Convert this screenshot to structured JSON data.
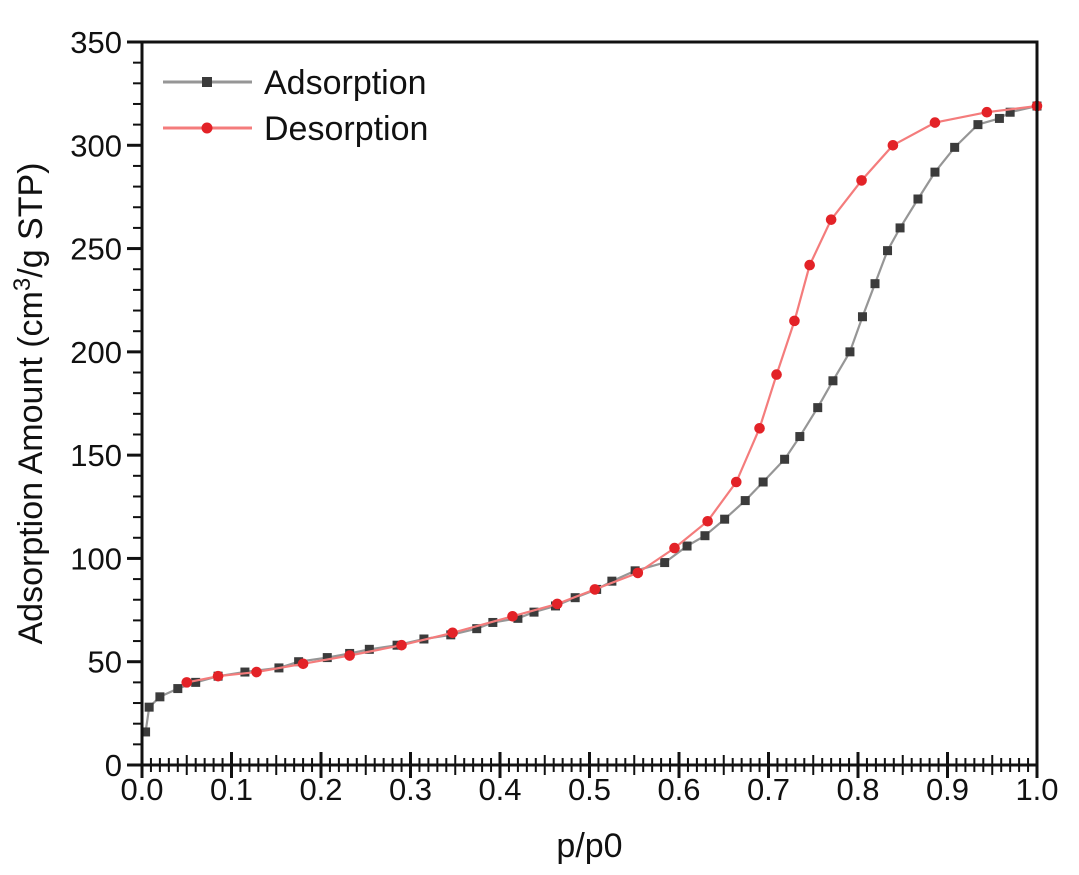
{
  "chart_data": {
    "type": "line",
    "title": "",
    "xlabel": "p/p0",
    "ylabel_parts": [
      {
        "t": "Adsorption Amount (cm"
      },
      {
        "t": "3",
        "sup": true
      },
      {
        "t": "/g STP)"
      }
    ],
    "xlim": [
      0.0,
      1.0
    ],
    "ylim": [
      0,
      350
    ],
    "x_tick_labels": [
      "0.0",
      "0.1",
      "0.2",
      "0.3",
      "0.4",
      "0.5",
      "0.6",
      "0.7",
      "0.8",
      "0.9",
      "1.0"
    ],
    "x_tick_values": [
      0.0,
      0.1,
      0.2,
      0.3,
      0.4,
      0.5,
      0.6,
      0.7,
      0.8,
      0.9,
      1.0
    ],
    "y_tick_labels": [
      "0",
      "50",
      "100",
      "150",
      "200",
      "250",
      "300",
      "350"
    ],
    "y_tick_values": [
      0,
      50,
      100,
      150,
      200,
      250,
      300,
      350
    ],
    "x_minor_step": 0.01,
    "y_minor_step": 10,
    "grid": false,
    "legend_position": "top-left-inside",
    "frame_color": "#111111",
    "background_color": "#ffffff",
    "legend": [
      {
        "label": "Adsorption",
        "series_index": 0
      },
      {
        "label": "Desorption",
        "series_index": 1
      }
    ],
    "series": [
      {
        "name": "Adsorption",
        "marker": "square",
        "marker_color": "#3b3b3b",
        "line_color": "#969696",
        "points": [
          [
            0.004,
            16
          ],
          [
            0.008,
            28
          ],
          [
            0.02,
            33
          ],
          [
            0.04,
            37
          ],
          [
            0.06,
            40
          ],
          [
            0.085,
            43
          ],
          [
            0.115,
            45
          ],
          [
            0.153,
            47
          ],
          [
            0.175,
            50
          ],
          [
            0.207,
            52
          ],
          [
            0.232,
            54
          ],
          [
            0.254,
            56
          ],
          [
            0.285,
            58
          ],
          [
            0.315,
            61
          ],
          [
            0.345,
            63
          ],
          [
            0.374,
            66
          ],
          [
            0.392,
            69
          ],
          [
            0.42,
            71
          ],
          [
            0.438,
            74
          ],
          [
            0.462,
            77
          ],
          [
            0.484,
            81
          ],
          [
            0.508,
            85
          ],
          [
            0.525,
            89
          ],
          [
            0.551,
            94
          ],
          [
            0.584,
            98
          ],
          [
            0.609,
            106
          ],
          [
            0.629,
            111
          ],
          [
            0.651,
            119
          ],
          [
            0.674,
            128
          ],
          [
            0.694,
            137
          ],
          [
            0.718,
            148
          ],
          [
            0.735,
            159
          ],
          [
            0.755,
            173
          ],
          [
            0.772,
            186
          ],
          [
            0.791,
            200
          ],
          [
            0.805,
            217
          ],
          [
            0.819,
            233
          ],
          [
            0.833,
            249
          ],
          [
            0.847,
            260
          ],
          [
            0.867,
            274
          ],
          [
            0.886,
            287
          ],
          [
            0.908,
            299
          ],
          [
            0.934,
            310
          ],
          [
            0.958,
            313
          ],
          [
            0.97,
            316
          ],
          [
            1.0,
            319
          ]
        ]
      },
      {
        "name": "Desorption",
        "marker": "circle",
        "marker_color": "#e32227",
        "line_color": "#f47c7c",
        "points": [
          [
            0.05,
            40
          ],
          [
            0.085,
            43
          ],
          [
            0.128,
            45
          ],
          [
            0.18,
            49
          ],
          [
            0.232,
            53
          ],
          [
            0.29,
            58
          ],
          [
            0.347,
            64
          ],
          [
            0.414,
            72
          ],
          [
            0.464,
            78
          ],
          [
            0.506,
            85
          ],
          [
            0.554,
            93
          ],
          [
            0.595,
            105
          ],
          [
            0.632,
            118
          ],
          [
            0.664,
            137
          ],
          [
            0.69,
            163
          ],
          [
            0.709,
            189
          ],
          [
            0.729,
            215
          ],
          [
            0.746,
            242
          ],
          [
            0.77,
            264
          ],
          [
            0.804,
            283
          ],
          [
            0.839,
            300
          ],
          [
            0.886,
            311
          ],
          [
            0.944,
            316
          ],
          [
            1.0,
            319
          ]
        ]
      }
    ]
  }
}
